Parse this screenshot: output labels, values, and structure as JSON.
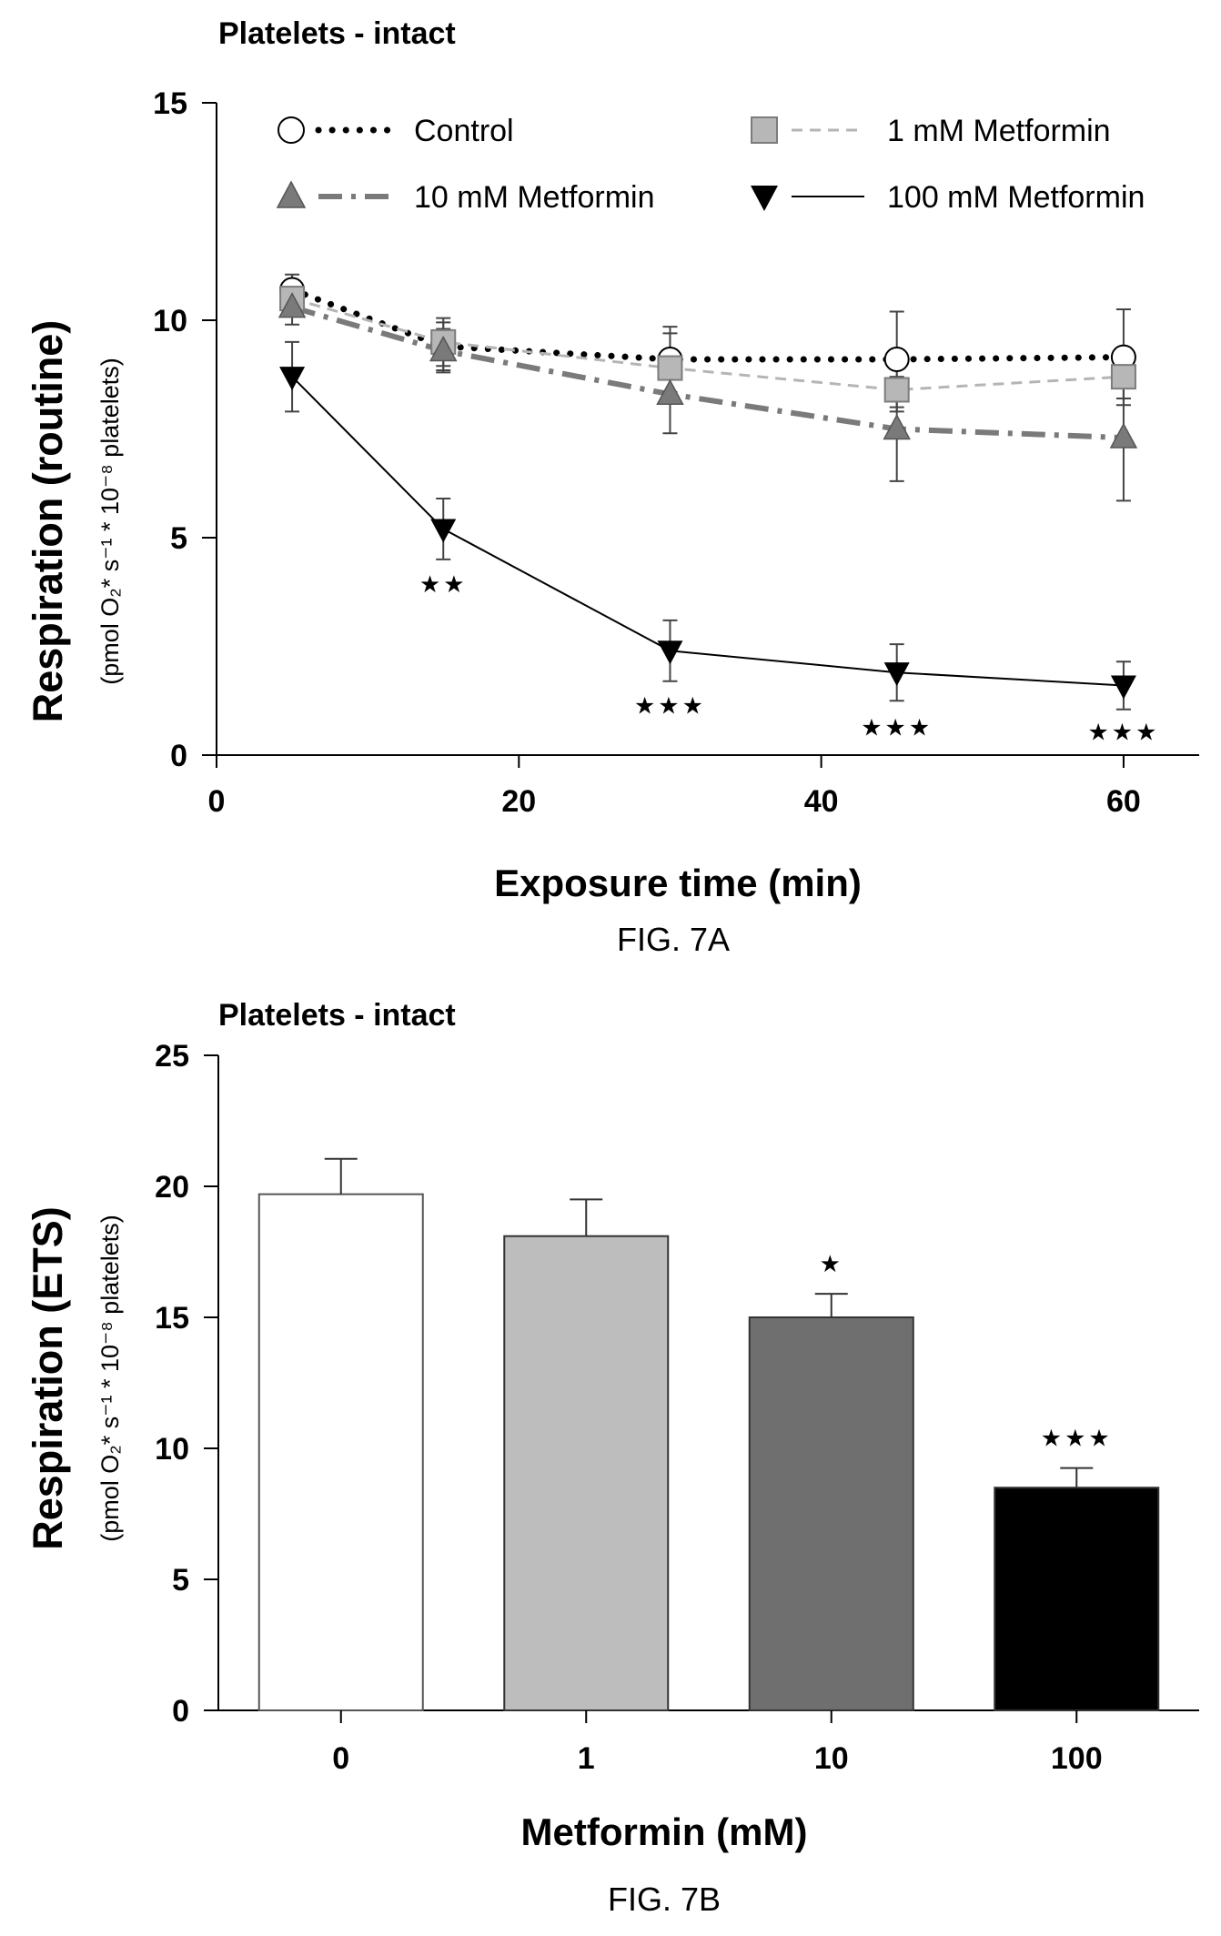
{
  "chart_data": [
    {
      "type": "line",
      "panel_title": "Platelets - intact",
      "xlabel": "Exposure time (min)",
      "ylabel": "Respiration (routine)",
      "ylabel_units": "(pmol O₂* s⁻¹ * 10⁻⁸ platelets)",
      "caption": "FIG. 7A",
      "xlim": [
        0,
        65
      ],
      "ylim": [
        0,
        15
      ],
      "x_ticks": [
        0,
        20,
        40,
        60
      ],
      "y_ticks": [
        0,
        5,
        10,
        15
      ],
      "x": [
        5,
        15,
        30,
        45,
        60
      ],
      "series": [
        {
          "name": "Control",
          "values": [
            10.7,
            9.4,
            9.1,
            9.1,
            9.15
          ],
          "errors": [
            0.35,
            0.55,
            0.75,
            1.1,
            1.1
          ],
          "marker": "open-circle",
          "line": "dotted",
          "color": "#000000"
        },
        {
          "name": "1 mM Metformin",
          "values": [
            10.5,
            9.5,
            8.9,
            8.4,
            8.7
          ],
          "errors": [
            0.4,
            0.55,
            0.8,
            0.5,
            0.5
          ],
          "marker": "square",
          "line": "dashed-light",
          "color": "#b0b0b0"
        },
        {
          "name": "10 mM Metformin",
          "values": [
            10.3,
            9.3,
            8.3,
            7.5,
            7.3
          ],
          "errors": [
            0.4,
            0.5,
            0.9,
            1.2,
            1.45
          ],
          "marker": "triangle-up",
          "line": "dash-dot",
          "color": "#7a7a7a"
        },
        {
          "name": "100 mM Metformin",
          "values": [
            8.7,
            5.2,
            2.4,
            1.9,
            1.6
          ],
          "errors": [
            0.8,
            0.7,
            0.7,
            0.65,
            0.55
          ],
          "marker": "triangle-down",
          "line": "solid",
          "color": "#000000"
        }
      ],
      "annotations": [
        {
          "x": 15,
          "y": 3.75,
          "text": "★★"
        },
        {
          "x": 30,
          "y": 0.95,
          "text": "★★★"
        },
        {
          "x": 45,
          "y": 0.45,
          "text": "★★★"
        },
        {
          "x": 60,
          "y": 0.35,
          "text": "★★★"
        }
      ]
    },
    {
      "type": "bar",
      "panel_title": "Platelets - intact",
      "xlabel": "Metformin (mM)",
      "ylabel": "Respiration (ETS)",
      "ylabel_units": "(pmol O₂* s⁻¹ * 10⁻⁸ platelets)",
      "caption": "FIG. 7B",
      "categories": [
        "0",
        "1",
        "10",
        "100"
      ],
      "values": [
        19.7,
        18.1,
        15.0,
        8.5
      ],
      "errors": [
        1.35,
        1.4,
        0.9,
        0.75
      ],
      "colors": [
        "#ffffff",
        "#bdbdbd",
        "#6f6f6f",
        "#000000"
      ],
      "ylim": [
        0,
        25
      ],
      "y_ticks": [
        0,
        5,
        10,
        15,
        20,
        25
      ],
      "annotations": [
        "",
        "",
        "★",
        "★★★"
      ]
    }
  ]
}
